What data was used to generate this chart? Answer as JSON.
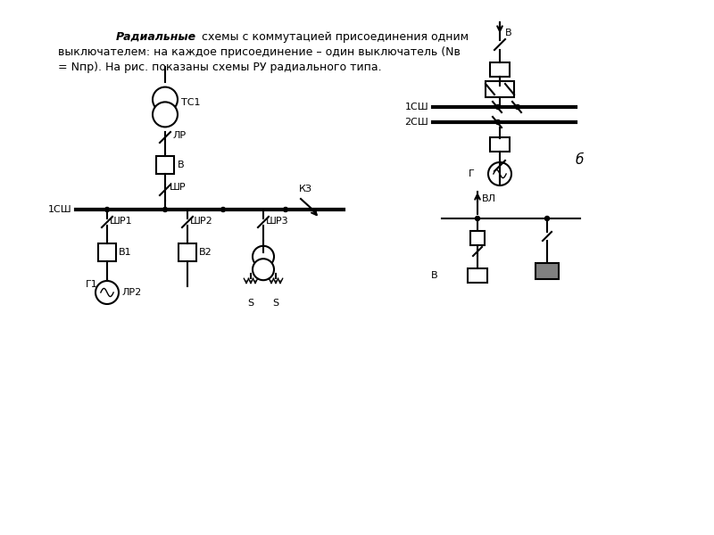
{
  "bg_color": "#ffffff",
  "text_color": "#000000",
  "label_fontsize": 8,
  "fig_width": 8.0,
  "fig_height": 6.0,
  "dpi": 100,
  "lw": 1.5,
  "lw_bus": 3.0,
  "header_bold_italic": "Радиальные",
  "header_line1_rest": " схемы с коммутацией присоединения одним",
  "header_line2": "выключателем: на каждое присоединение – один выключатель (Nв",
  "header_line3": "= Nпр). На рис. показаны схемы РУ радиального типа."
}
